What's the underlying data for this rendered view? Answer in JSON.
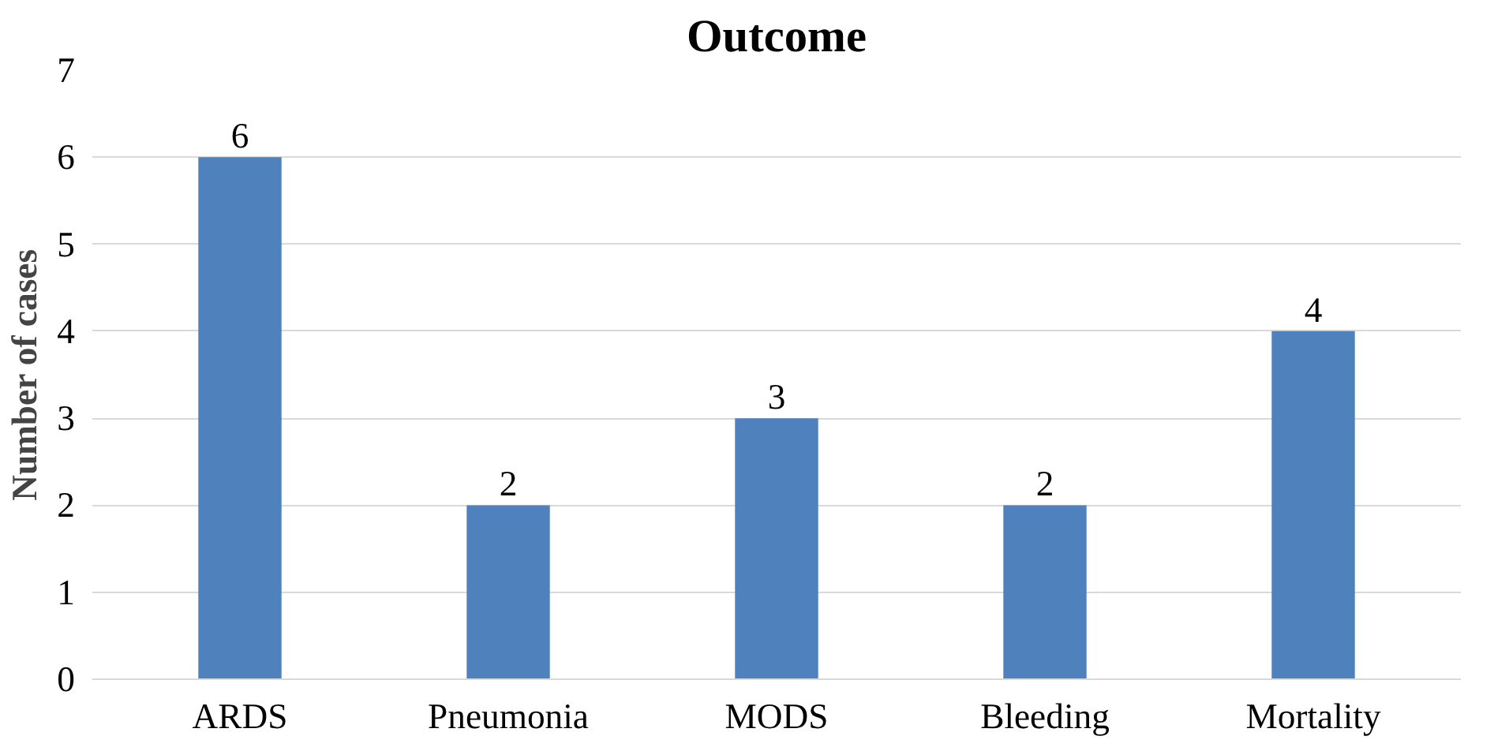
{
  "chart_data": {
    "type": "bar",
    "title": "Outcome",
    "ylabel": "Number of cases",
    "categories": [
      "ARDS",
      "Pneumonia",
      "MODS",
      "Bleeding",
      "Mortality"
    ],
    "values": [
      6,
      2,
      3,
      2,
      4
    ],
    "color": "#4f81bd",
    "ylim": [
      0,
      7
    ],
    "yticks": [
      0,
      1,
      2,
      3,
      4,
      5,
      6,
      7
    ],
    "grid": "y",
    "data_labels": true
  }
}
